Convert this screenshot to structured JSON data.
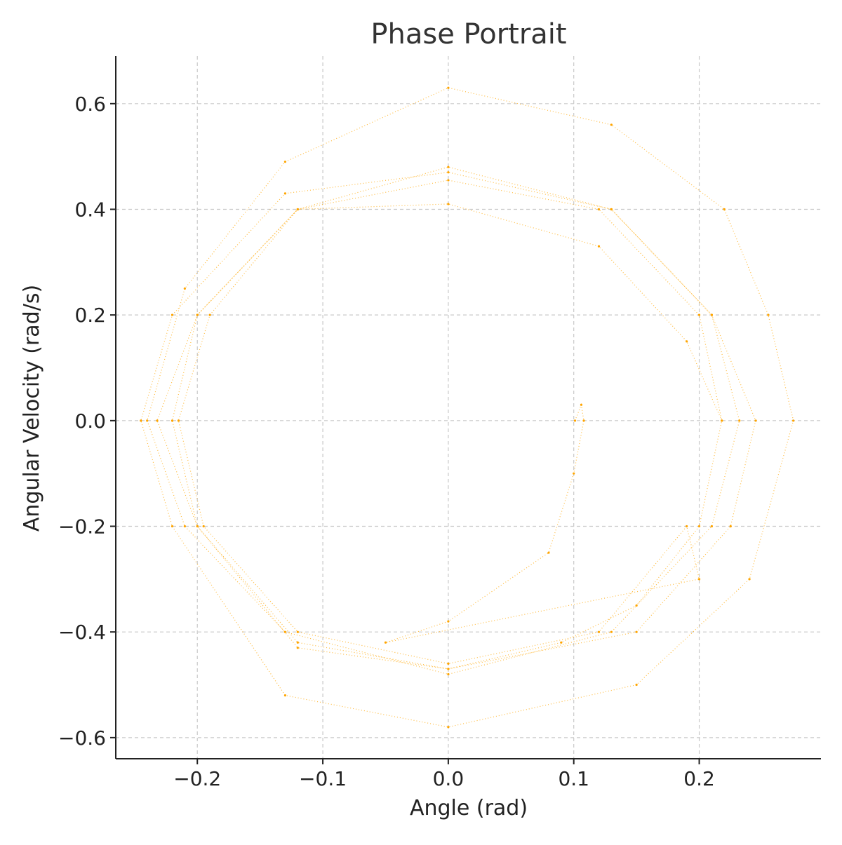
{
  "chart_data": {
    "type": "scatter",
    "title": "Phase Portrait",
    "xlabel": "Angle (rad)",
    "ylabel": "Angular Velocity (rad/s)",
    "xlim": [
      -0.265,
      0.297
    ],
    "ylim": [
      -0.64,
      0.69
    ],
    "xticks": [
      -0.2,
      -0.1,
      0.0,
      0.1,
      0.2
    ],
    "xtick_labels": [
      "−0.2",
      "−0.1",
      "0.0",
      "0.1",
      "0.2"
    ],
    "yticks": [
      -0.6,
      -0.4,
      -0.2,
      0.0,
      0.2,
      0.4,
      0.6
    ],
    "ytick_labels": [
      "−0.6",
      "−0.4",
      "−0.2",
      "0.0",
      "0.2",
      "0.4",
      "0.6"
    ],
    "grid": true,
    "grid_style": "dashed",
    "legend": "none",
    "series": [
      {
        "marker_color": "#FFA500",
        "description_of_shape": "spiral",
        "x": [
          0.101,
          0.106,
          0.108,
          0.1,
          0.08,
          0.0,
          -0.05,
          0.2,
          0.19,
          0.12,
          0.0,
          -0.12,
          -0.195,
          -0.215,
          -0.19,
          -0.12,
          0.0,
          0.12,
          0.19,
          0.218,
          0.2,
          0.15,
          0.09,
          0.0,
          -0.12,
          -0.2,
          -0.232,
          -0.2,
          -0.12,
          0.0,
          0.13,
          0.21,
          0.232,
          0.21,
          0.13,
          0.0,
          -0.13,
          -0.21,
          -0.24,
          -0.21,
          -0.13,
          0.0,
          0.13,
          0.22,
          0.255,
          0.275,
          0.24,
          0.15,
          0.0,
          -0.13,
          -0.22,
          -0.245,
          -0.22,
          -0.13,
          0.0,
          0.13,
          0.21,
          0.245,
          0.225,
          0.15,
          0.0,
          -0.12,
          -0.2,
          -0.22,
          -0.2,
          -0.12,
          0.0,
          0.12,
          0.2,
          0.218
        ],
        "y": [
          0.0,
          0.03,
          0.0,
          -0.1,
          -0.25,
          -0.38,
          -0.42,
          -0.3,
          -0.2,
          -0.4,
          -0.46,
          -0.4,
          -0.2,
          0.0,
          0.2,
          0.4,
          0.41,
          0.33,
          0.15,
          0.0,
          -0.2,
          -0.35,
          -0.42,
          -0.47,
          -0.42,
          -0.2,
          0.0,
          0.2,
          0.4,
          0.48,
          0.4,
          0.2,
          0.0,
          -0.2,
          -0.4,
          -0.48,
          -0.4,
          -0.2,
          0.0,
          0.25,
          0.49,
          0.63,
          0.56,
          0.4,
          0.2,
          0.0,
          -0.3,
          -0.5,
          -0.58,
          -0.52,
          -0.2,
          0.0,
          0.2,
          0.43,
          0.47,
          0.4,
          0.2,
          0.0,
          -0.2,
          -0.4,
          -0.47,
          -0.43,
          -0.2,
          0.0,
          0.2,
          0.4,
          0.455,
          0.4,
          0.2,
          0.0
        ]
      }
    ]
  }
}
